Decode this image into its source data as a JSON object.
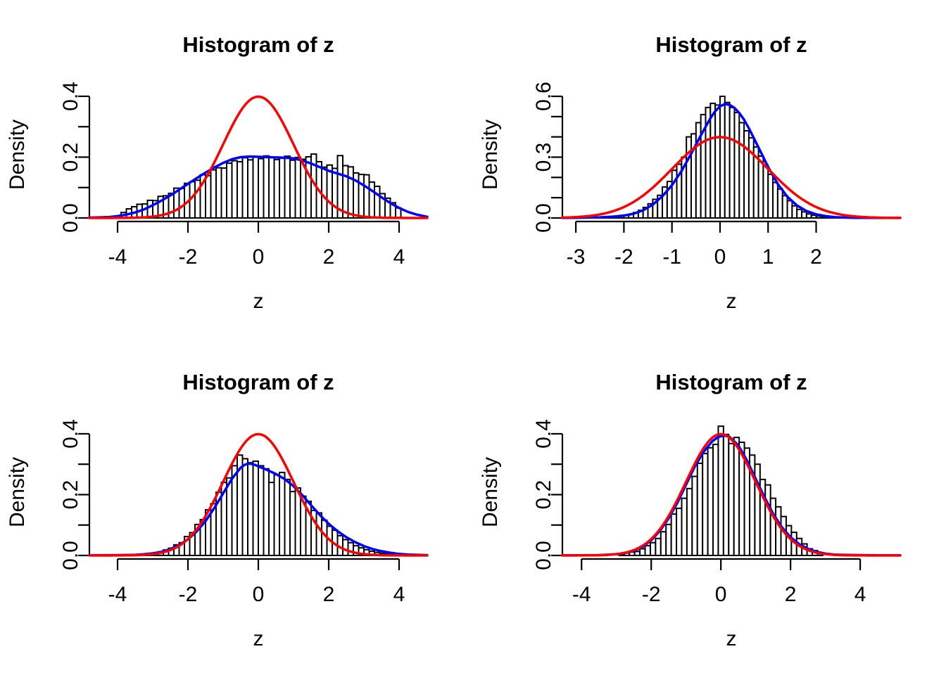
{
  "figure": {
    "background": "#ffffff"
  },
  "colors": {
    "bar_fill": "#ffffff",
    "bar_border": "#000000",
    "kde_curve": "#0000ff",
    "normal_curve": "#ff0000",
    "axis": "#000000",
    "text": "#000000"
  },
  "chart_data": [
    {
      "position": "top-left",
      "type": "bar",
      "title": "Histogram of z",
      "xlabel": "z",
      "ylabel": "Density",
      "xlim": [
        -4.8,
        4.8
      ],
      "ylim": [
        -0.0116,
        0.4161
      ],
      "x_ticks": [
        {
          "v": -4,
          "label": "-4"
        },
        {
          "v": -2,
          "label": "-2"
        },
        {
          "v": 0,
          "label": "0"
        },
        {
          "v": 2,
          "label": "2"
        },
        {
          "v": 4,
          "label": "4"
        }
      ],
      "y_ticks": [
        0,
        0.1,
        0.2,
        0.3,
        0.4
      ],
      "y_tick_labels": [
        {
          "v": 0,
          "label": "0.0"
        },
        {
          "v": 0.2,
          "label": "0.2"
        },
        {
          "v": 0.4,
          "label": "0.4"
        }
      ],
      "bars": {
        "start": -4.35,
        "width": 0.15,
        "heights": [
          0.004,
          0,
          0.004,
          0.018,
          0.03,
          0.037,
          0.045,
          0.046,
          0.058,
          0.057,
          0.071,
          0.073,
          0.081,
          0.098,
          0.097,
          0.114,
          0.119,
          0.124,
          0.142,
          0.139,
          0.158,
          0.165,
          0.164,
          0.18,
          0.188,
          0.185,
          0.198,
          0.191,
          0.202,
          0.195,
          0.204,
          0.198,
          0.192,
          0.196,
          0.203,
          0.19,
          0.199,
          0.193,
          0.201,
          0.21,
          0.185,
          0.167,
          0.174,
          0.163,
          0.205,
          0.172,
          0.168,
          0.148,
          0.143,
          0.142,
          0.118,
          0.104,
          0.08,
          0.065,
          0.05,
          0.033
        ]
      },
      "kde_points": [
        [
          -4.8,
          0.001
        ],
        [
          -4.5,
          0.002
        ],
        [
          -4.25,
          0.003
        ],
        [
          -4,
          0.006
        ],
        [
          -3.75,
          0.011
        ],
        [
          -3.5,
          0.018
        ],
        [
          -3.25,
          0.028
        ],
        [
          -3,
          0.042
        ],
        [
          -2.75,
          0.057
        ],
        [
          -2.5,
          0.074
        ],
        [
          -2.25,
          0.093
        ],
        [
          -2,
          0.112
        ],
        [
          -1.75,
          0.131
        ],
        [
          -1.5,
          0.149
        ],
        [
          -1.25,
          0.166
        ],
        [
          -1,
          0.181
        ],
        [
          -0.75,
          0.193
        ],
        [
          -0.5,
          0.2
        ],
        [
          -0.25,
          0.202
        ],
        [
          0,
          0.201
        ],
        [
          0.25,
          0.2
        ],
        [
          0.5,
          0.199
        ],
        [
          0.75,
          0.198
        ],
        [
          1,
          0.196
        ],
        [
          1.25,
          0.189
        ],
        [
          1.5,
          0.179
        ],
        [
          1.75,
          0.167
        ],
        [
          2,
          0.155
        ],
        [
          2.25,
          0.146
        ],
        [
          2.5,
          0.137
        ],
        [
          2.75,
          0.124
        ],
        [
          3,
          0.107
        ],
        [
          3.25,
          0.088
        ],
        [
          3.5,
          0.068
        ],
        [
          3.75,
          0.049
        ],
        [
          4,
          0.033
        ],
        [
          4.25,
          0.02
        ],
        [
          4.5,
          0.011
        ],
        [
          4.8,
          0.004
        ]
      ],
      "normal_curve": {
        "mean": 0,
        "sd": 1,
        "amplitude": 0.3989423
      }
    },
    {
      "position": "top-right",
      "type": "bar",
      "title": "Histogram of z",
      "xlabel": "z",
      "ylabel": "Density",
      "xlim": [
        -3.28,
        3.75
      ],
      "ylim": [
        -0.0173,
        0.6243
      ],
      "x_ticks": [
        {
          "v": -3,
          "label": "-3"
        },
        {
          "v": -2,
          "label": "-2"
        },
        {
          "v": -1,
          "label": "-1"
        },
        {
          "v": 0,
          "label": "0"
        },
        {
          "v": 1,
          "label": "1"
        },
        {
          "v": 2,
          "label": "2"
        }
      ],
      "y_ticks": [
        0,
        0.1,
        0.2,
        0.3,
        0.4,
        0.5,
        0.6
      ],
      "y_tick_labels": [
        {
          "v": 0,
          "label": "0.0"
        },
        {
          "v": 0.3,
          "label": "0.3"
        },
        {
          "v": 0.6,
          "label": "0.6"
        }
      ],
      "bars": {
        "start": -2.6,
        "width": 0.1,
        "heights": [
          0.001,
          0.002,
          0.002,
          0.004,
          0.006,
          0.008,
          0.013,
          0.018,
          0.027,
          0.038,
          0.052,
          0.07,
          0.092,
          0.112,
          0.153,
          0.18,
          0.235,
          0.265,
          0.3,
          0.4,
          0.415,
          0.47,
          0.51,
          0.545,
          0.565,
          0.557,
          0.6,
          0.57,
          0.545,
          0.52,
          0.47,
          0.43,
          0.395,
          0.35,
          0.305,
          0.26,
          0.215,
          0.175,
          0.143,
          0.11,
          0.085,
          0.06,
          0.042,
          0.03,
          0.02,
          0.013,
          0.009,
          0.006,
          0.004,
          0.003,
          0.002,
          0.001
        ]
      },
      "kde_points": [
        [
          -3.28,
          0.0005
        ],
        [
          -3,
          0.001
        ],
        [
          -2.75,
          0.002
        ],
        [
          -2.5,
          0.003
        ],
        [
          -2.25,
          0.006
        ],
        [
          -2,
          0.012
        ],
        [
          -1.8,
          0.021
        ],
        [
          -1.6,
          0.038
        ],
        [
          -1.4,
          0.066
        ],
        [
          -1.2,
          0.107
        ],
        [
          -1,
          0.162
        ],
        [
          -0.8,
          0.232
        ],
        [
          -0.6,
          0.317
        ],
        [
          -0.4,
          0.407
        ],
        [
          -0.2,
          0.492
        ],
        [
          -0.1,
          0.527
        ],
        [
          0,
          0.551
        ],
        [
          0.1,
          0.562
        ],
        [
          0.2,
          0.558
        ],
        [
          0.3,
          0.543
        ],
        [
          0.4,
          0.518
        ],
        [
          0.5,
          0.485
        ],
        [
          0.6,
          0.443
        ],
        [
          0.8,
          0.348
        ],
        [
          1,
          0.252
        ],
        [
          1.2,
          0.168
        ],
        [
          1.4,
          0.105
        ],
        [
          1.6,
          0.062
        ],
        [
          1.8,
          0.034
        ],
        [
          2,
          0.018
        ],
        [
          2.2,
          0.009
        ],
        [
          2.4,
          0.004
        ],
        [
          2.6,
          0.002
        ],
        [
          2.8,
          0.001
        ],
        [
          3.2,
          0.0005
        ],
        [
          3.75,
          0.0005
        ]
      ],
      "normal_curve": {
        "mean": 0,
        "sd": 1,
        "amplitude": 0.3989423
      }
    },
    {
      "position": "bottom-left",
      "type": "bar",
      "title": "Histogram of z",
      "xlabel": "z",
      "ylabel": "Density",
      "xlim": [
        -4.8,
        4.8
      ],
      "ylim": [
        -0.0116,
        0.4161
      ],
      "x_ticks": [
        {
          "v": -4,
          "label": "-4"
        },
        {
          "v": -2,
          "label": "-2"
        },
        {
          "v": 0,
          "label": "0"
        },
        {
          "v": 2,
          "label": "2"
        },
        {
          "v": 4,
          "label": "4"
        }
      ],
      "y_ticks": [
        0,
        0.1,
        0.2,
        0.3,
        0.4
      ],
      "y_tick_labels": [
        {
          "v": 0,
          "label": "0.0"
        },
        {
          "v": 0.2,
          "label": "0.2"
        },
        {
          "v": 0.4,
          "label": "0.4"
        }
      ],
      "bars": {
        "start": -3.3,
        "width": 0.15,
        "heights": [
          0.004,
          0.005,
          0.008,
          0.012,
          0.018,
          0.024,
          0.035,
          0.042,
          0.062,
          0.075,
          0.102,
          0.118,
          0.15,
          0.17,
          0.208,
          0.24,
          0.255,
          0.295,
          0.33,
          0.318,
          0.305,
          0.31,
          0.295,
          0.285,
          0.24,
          0.265,
          0.273,
          0.25,
          0.21,
          0.222,
          0.195,
          0.178,
          0.148,
          0.14,
          0.116,
          0.096,
          0.083,
          0.065,
          0.052,
          0.042,
          0.032,
          0.025,
          0.019,
          0.014,
          0.01,
          0.007,
          0.005,
          0.004,
          0.003,
          0.002,
          0.001
        ]
      },
      "kde_points": [
        [
          -4.8,
          0.0005
        ],
        [
          -4,
          0.001
        ],
        [
          -3.5,
          0.002
        ],
        [
          -3.25,
          0.004
        ],
        [
          -3,
          0.007
        ],
        [
          -2.75,
          0.012
        ],
        [
          -2.5,
          0.021
        ],
        [
          -2.25,
          0.034
        ],
        [
          -2,
          0.053
        ],
        [
          -1.75,
          0.079
        ],
        [
          -1.5,
          0.113
        ],
        [
          -1.25,
          0.156
        ],
        [
          -1,
          0.204
        ],
        [
          -0.75,
          0.252
        ],
        [
          -0.5,
          0.289
        ],
        [
          -0.4,
          0.297
        ],
        [
          -0.3,
          0.302
        ],
        [
          -0.2,
          0.301
        ],
        [
          -0.1,
          0.298
        ],
        [
          0,
          0.293
        ],
        [
          0.25,
          0.281
        ],
        [
          0.5,
          0.268
        ],
        [
          0.75,
          0.251
        ],
        [
          1,
          0.228
        ],
        [
          1.25,
          0.198
        ],
        [
          1.5,
          0.165
        ],
        [
          1.75,
          0.133
        ],
        [
          2,
          0.104
        ],
        [
          2.25,
          0.08
        ],
        [
          2.5,
          0.06
        ],
        [
          2.75,
          0.044
        ],
        [
          3,
          0.031
        ],
        [
          3.25,
          0.021
        ],
        [
          3.5,
          0.014
        ],
        [
          3.75,
          0.009
        ],
        [
          4,
          0.005
        ],
        [
          4.25,
          0.003
        ],
        [
          4.5,
          0.002
        ],
        [
          4.8,
          0.001
        ]
      ],
      "normal_curve": {
        "mean": 0,
        "sd": 1,
        "amplitude": 0.3989423
      }
    },
    {
      "position": "bottom-right",
      "type": "bar",
      "title": "Histogram of z",
      "xlabel": "z",
      "ylabel": "Density",
      "xlim": [
        -4.55,
        5.15
      ],
      "ylim": [
        -0.0116,
        0.4161
      ],
      "x_ticks": [
        {
          "v": -4,
          "label": "-4"
        },
        {
          "v": -2,
          "label": "-2"
        },
        {
          "v": 0,
          "label": "0"
        },
        {
          "v": 2,
          "label": "2"
        },
        {
          "v": 4,
          "label": "4"
        }
      ],
      "y_ticks": [
        0,
        0.1,
        0.2,
        0.3,
        0.4
      ],
      "y_tick_labels": [
        {
          "v": 0,
          "label": "0.0"
        },
        {
          "v": 0.2,
          "label": "0.2"
        },
        {
          "v": 0.4,
          "label": "0.4"
        }
      ],
      "bars": {
        "start": -2.925,
        "width": 0.15,
        "heights": [
          0.005,
          0.008,
          0.011,
          0.013,
          0.022,
          0.032,
          0.042,
          0.056,
          0.078,
          0.102,
          0.136,
          0.155,
          0.188,
          0.22,
          0.26,
          0.303,
          0.335,
          0.354,
          0.365,
          0.425,
          0.398,
          0.368,
          0.388,
          0.372,
          0.353,
          0.33,
          0.3,
          0.25,
          0.232,
          0.188,
          0.16,
          0.128,
          0.098,
          0.076,
          0.056,
          0.038,
          0.022,
          0.016,
          0.009
        ]
      },
      "kde_points": [
        [
          -4.55,
          0.0005
        ],
        [
          -4,
          0.0005
        ],
        [
          -3.5,
          0.001
        ],
        [
          -3,
          0.004
        ],
        [
          -2.75,
          0.008
        ],
        [
          -2.5,
          0.015
        ],
        [
          -2.25,
          0.028
        ],
        [
          -2,
          0.05
        ],
        [
          -1.75,
          0.081
        ],
        [
          -1.5,
          0.122
        ],
        [
          -1.25,
          0.173
        ],
        [
          -1,
          0.233
        ],
        [
          -0.75,
          0.292
        ],
        [
          -0.5,
          0.34
        ],
        [
          -0.25,
          0.375
        ],
        [
          -0.1,
          0.388
        ],
        [
          0,
          0.392
        ],
        [
          0.1,
          0.394
        ],
        [
          0.25,
          0.39
        ],
        [
          0.5,
          0.362
        ],
        [
          0.75,
          0.312
        ],
        [
          1,
          0.252
        ],
        [
          1.25,
          0.192
        ],
        [
          1.5,
          0.137
        ],
        [
          1.75,
          0.093
        ],
        [
          2,
          0.06
        ],
        [
          2.25,
          0.037
        ],
        [
          2.5,
          0.022
        ],
        [
          2.75,
          0.012
        ],
        [
          3,
          0.006
        ],
        [
          3.25,
          0.003
        ],
        [
          3.5,
          0.002
        ],
        [
          4,
          0.001
        ],
        [
          4.5,
          0.0005
        ],
        [
          5.15,
          0.0005
        ]
      ],
      "normal_curve": {
        "mean": 0,
        "sd": 1,
        "amplitude": 0.3989423
      }
    }
  ]
}
